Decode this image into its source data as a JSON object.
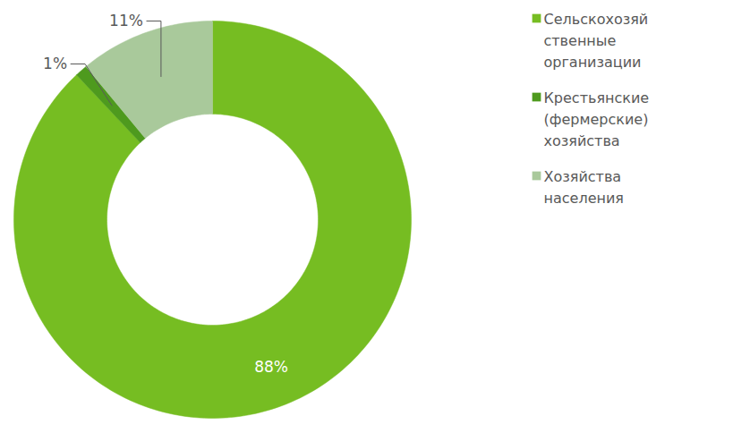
{
  "chart_data": {
    "type": "donut",
    "categories": [
      "Сельскохозяйственные организации",
      "Крестьянские (фермерские) хозяйства",
      "Хозяйства населения"
    ],
    "values": [
      88,
      1,
      11
    ],
    "value_labels": [
      "88%",
      "1%",
      "11%"
    ],
    "colors": [
      "#76bd22",
      "#4e9a1e",
      "#a9c99b"
    ],
    "data_labels": true,
    "legend": "right"
  }
}
